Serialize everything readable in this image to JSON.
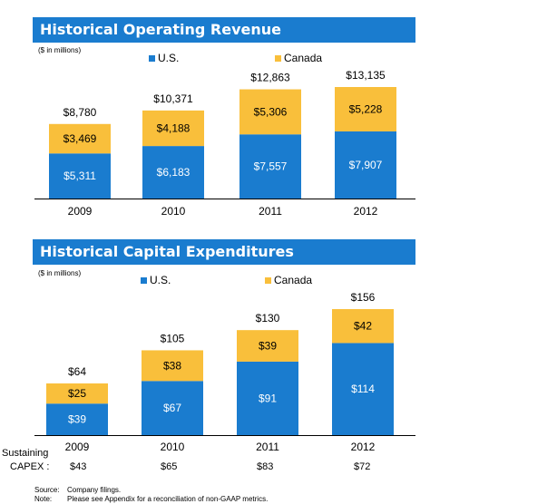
{
  "chart_data": [
    {
      "type": "bar",
      "stacked": true,
      "title": "Historical Operating Revenue",
      "units_label": "($ in millions)",
      "categories": [
        "2009",
        "2010",
        "2011",
        "2012"
      ],
      "series": [
        {
          "name": "U.S.",
          "color": "#1a7ccf",
          "values": [
            5311,
            6183,
            7557,
            7907
          ],
          "labels": [
            "$5,311",
            "$6,183",
            "$7,557",
            "$7,907"
          ]
        },
        {
          "name": "Canada",
          "color": "#f9bf3b",
          "values": [
            3469,
            4188,
            5306,
            5228
          ],
          "labels": [
            "$3,469",
            "$4,188",
            "$5,306",
            "$5,228"
          ]
        }
      ],
      "totals": [
        8780,
        10371,
        12863,
        13135
      ],
      "total_labels": [
        "$8,780",
        "$10,371",
        "$12,863",
        "$13,135"
      ],
      "ylim": [
        0,
        13135
      ]
    },
    {
      "type": "bar",
      "stacked": true,
      "title": "Historical Capital Expenditures",
      "units_label": "($ in millions)",
      "categories": [
        "2009",
        "2010",
        "2011",
        "2012"
      ],
      "series": [
        {
          "name": "U.S.",
          "color": "#1a7ccf",
          "values": [
            39,
            67,
            91,
            114
          ],
          "labels": [
            "$39",
            "$67",
            "$91",
            "$114"
          ]
        },
        {
          "name": "Canada",
          "color": "#f9bf3b",
          "values": [
            25,
            38,
            39,
            42
          ],
          "labels": [
            "$25",
            "$38",
            "$39",
            "$42"
          ]
        }
      ],
      "totals": [
        64,
        105,
        130,
        156
      ],
      "total_labels": [
        "$64",
        "$105",
        "$130",
        "$156"
      ],
      "ylim": [
        0,
        156
      ],
      "sustaining_capex": {
        "label_line1": "Sustaining",
        "label_line2": "CAPEX :",
        "values": [
          "$43",
          "$65",
          "$83",
          "$72"
        ]
      }
    }
  ],
  "footnotes": {
    "source_label": "Source:",
    "source_text": "Company filings.",
    "note_label": "Note:",
    "note_text": "Please see Appendix for a reconciliation of non-GAAP metrics."
  }
}
